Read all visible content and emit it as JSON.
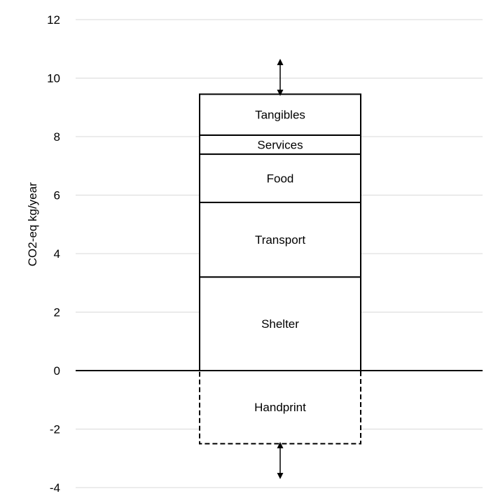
{
  "chart_data": {
    "type": "bar",
    "title": "",
    "xlabel": "",
    "ylabel": "CO2-eq kg/year",
    "ylim": [
      -4,
      12
    ],
    "y_ticks": [
      12,
      10,
      8,
      6,
      4,
      2,
      0,
      -2,
      -4
    ],
    "grid": true,
    "stacked": true,
    "segments": [
      {
        "name": "Shelter",
        "start": 0,
        "end": 3.2,
        "style": "solid"
      },
      {
        "name": "Transport",
        "start": 3.2,
        "end": 5.75,
        "style": "solid"
      },
      {
        "name": "Food",
        "start": 5.75,
        "end": 7.4,
        "style": "solid"
      },
      {
        "name": "Services",
        "start": 7.4,
        "end": 8.05,
        "style": "solid"
      },
      {
        "name": "Tangibles",
        "start": 8.05,
        "end": 9.45,
        "style": "solid"
      },
      {
        "name": "Handprint",
        "start": -2.5,
        "end": 0,
        "style": "dashed"
      }
    ],
    "arrows": [
      {
        "from": 9.45,
        "to": 10.6,
        "position": "above bar"
      },
      {
        "from": -2.5,
        "to": -3.65,
        "position": "below bar"
      }
    ]
  }
}
